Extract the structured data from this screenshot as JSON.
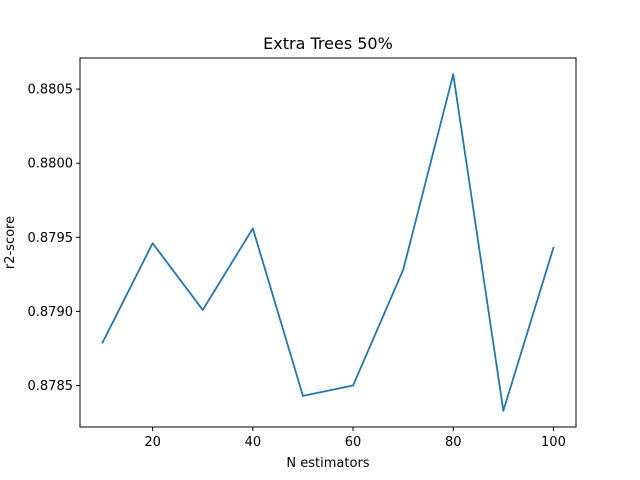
{
  "chart_data": {
    "type": "line",
    "title": "Extra Trees 50%",
    "xlabel": "N estimators",
    "ylabel": "r2-score",
    "x": [
      10,
      20,
      30,
      40,
      50,
      60,
      70,
      80,
      90,
      100
    ],
    "series": [
      {
        "values": [
          0.87879,
          0.87946,
          0.87901,
          0.87956,
          0.87843,
          0.8785,
          0.87928,
          0.8806,
          0.87833,
          0.87943
        ],
        "color": "#1f77b4"
      }
    ],
    "xlim": [
      5.5,
      104.5
    ],
    "ylim": [
      0.87822,
      0.88071
    ],
    "xticks": [
      20,
      40,
      60,
      80,
      100
    ],
    "xtick_labels": [
      "20",
      "40",
      "60",
      "80",
      "100"
    ],
    "yticks": [
      0.8785,
      0.879,
      0.8795,
      0.88,
      0.8805
    ],
    "ytick_labels": [
      "0.8785",
      "0.8790",
      "0.8795",
      "0.8800",
      "0.8805"
    ],
    "grid": false,
    "legend": false
  }
}
